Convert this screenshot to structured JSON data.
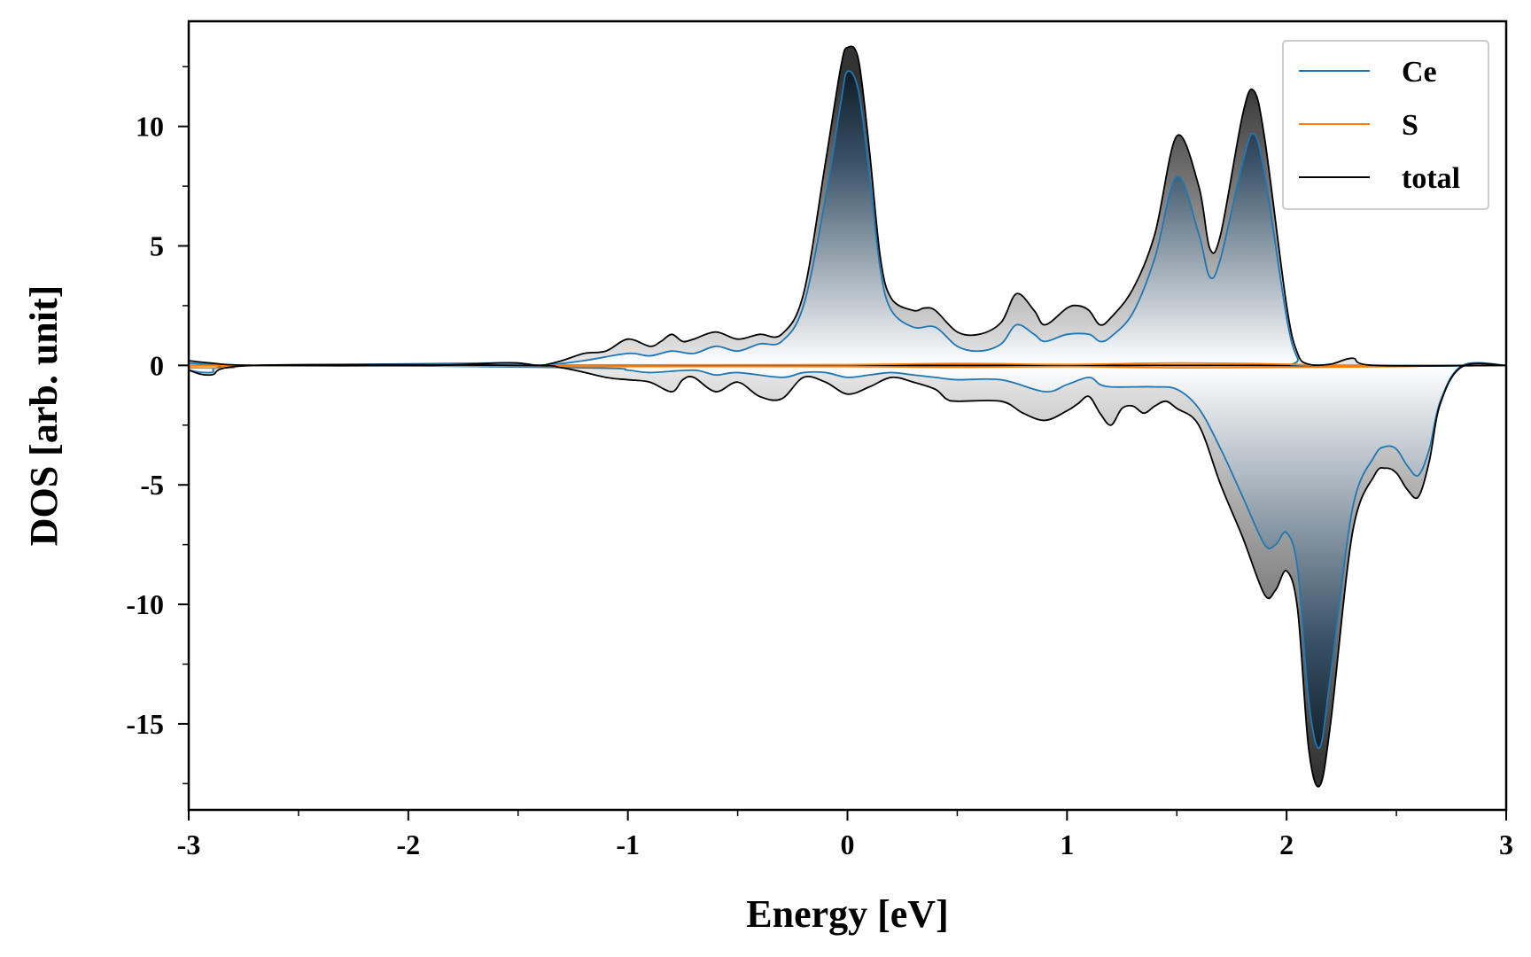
{
  "chart_data": {
    "type": "line",
    "xlabel": "Energy [eV]",
    "ylabel": "DOS [arb. unit]",
    "xlim": [
      -3,
      3
    ],
    "ylim": [
      -18.6,
      14.4
    ],
    "x_ticks": [
      -3,
      -2,
      -1,
      0,
      1,
      2,
      3
    ],
    "x_tick_labels": [
      "-3",
      "-2",
      "-1",
      "0",
      "1",
      "2",
      "3"
    ],
    "y_ticks": [
      10,
      5,
      0,
      -5,
      -10,
      -15
    ],
    "y_tick_labels": [
      "10",
      "5",
      "0",
      "-5",
      "-10",
      "-15"
    ],
    "grid": false,
    "legend_position": "top-right",
    "fill": "gradient under total curve, dark at extremes, white at zero",
    "series": [
      {
        "name": "Ce",
        "color": "#1f77b4",
        "up": [
          [
            -3.0,
            0.1
          ],
          [
            -2.7,
            0
          ],
          [
            -1.6,
            0.1
          ],
          [
            -1.4,
            0
          ],
          [
            -1.2,
            0.2
          ],
          [
            -1.0,
            0.5
          ],
          [
            -0.9,
            0.4
          ],
          [
            -0.8,
            0.6
          ],
          [
            -0.7,
            0.5
          ],
          [
            -0.6,
            0.8
          ],
          [
            -0.5,
            0.6
          ],
          [
            -0.4,
            0.9
          ],
          [
            -0.3,
            1.0
          ],
          [
            -0.2,
            2.5
          ],
          [
            -0.1,
            7.0
          ],
          [
            -0.03,
            11.0
          ],
          [
            0.0,
            12.3
          ],
          [
            0.05,
            11.5
          ],
          [
            0.1,
            8.0
          ],
          [
            0.15,
            4.0
          ],
          [
            0.2,
            2.3
          ],
          [
            0.3,
            1.6
          ],
          [
            0.4,
            1.6
          ],
          [
            0.5,
            0.8
          ],
          [
            0.6,
            0.6
          ],
          [
            0.7,
            0.9
          ],
          [
            0.77,
            1.7
          ],
          [
            0.85,
            1.3
          ],
          [
            0.9,
            1.0
          ],
          [
            1.0,
            1.3
          ],
          [
            1.1,
            1.3
          ],
          [
            1.15,
            1.0
          ],
          [
            1.2,
            1.2
          ],
          [
            1.3,
            2.2
          ],
          [
            1.4,
            4.5
          ],
          [
            1.5,
            7.9
          ],
          [
            1.6,
            5.5
          ],
          [
            1.65,
            3.7
          ],
          [
            1.7,
            4.5
          ],
          [
            1.8,
            8.5
          ],
          [
            1.85,
            9.7
          ],
          [
            1.9,
            8.0
          ],
          [
            2.0,
            2.0
          ],
          [
            2.05,
            0.3
          ],
          [
            2.1,
            0
          ],
          [
            3.0,
            0
          ]
        ],
        "down": [
          [
            -3.0,
            -0.2
          ],
          [
            -2.9,
            -0.3
          ],
          [
            -2.7,
            0
          ],
          [
            -1.2,
            -0.1
          ],
          [
            -1.0,
            -0.2
          ],
          [
            -0.9,
            -0.3
          ],
          [
            -0.7,
            -0.2
          ],
          [
            -0.6,
            -0.4
          ],
          [
            -0.5,
            -0.3
          ],
          [
            -0.3,
            -0.5
          ],
          [
            -0.2,
            -0.3
          ],
          [
            -0.1,
            -0.3
          ],
          [
            0.0,
            -0.5
          ],
          [
            0.1,
            -0.4
          ],
          [
            0.2,
            -0.3
          ],
          [
            0.3,
            -0.4
          ],
          [
            0.4,
            -0.5
          ],
          [
            0.5,
            -0.6
          ],
          [
            0.7,
            -0.6
          ],
          [
            0.9,
            -1.1
          ],
          [
            1.0,
            -0.8
          ],
          [
            1.1,
            -0.5
          ],
          [
            1.15,
            -0.8
          ],
          [
            1.2,
            -0.9
          ],
          [
            1.3,
            -0.9
          ],
          [
            1.4,
            -0.9
          ],
          [
            1.5,
            -1.0
          ],
          [
            1.6,
            -1.8
          ],
          [
            1.7,
            -3.5
          ],
          [
            1.8,
            -5.5
          ],
          [
            1.9,
            -7.5
          ],
          [
            1.95,
            -7.5
          ],
          [
            2.0,
            -7.0
          ],
          [
            2.05,
            -8.5
          ],
          [
            2.1,
            -14.0
          ],
          [
            2.15,
            -16.0
          ],
          [
            2.2,
            -13.0
          ],
          [
            2.3,
            -6.0
          ],
          [
            2.4,
            -3.8
          ],
          [
            2.45,
            -3.4
          ],
          [
            2.5,
            -3.5
          ],
          [
            2.55,
            -4.2
          ],
          [
            2.6,
            -4.6
          ],
          [
            2.65,
            -3.5
          ],
          [
            2.7,
            -1.5
          ],
          [
            2.8,
            0
          ],
          [
            3.0,
            0
          ]
        ]
      },
      {
        "name": "S",
        "color": "#ff7f0e",
        "up": [
          [
            -3.0,
            0
          ],
          [
            -1.0,
            0.02
          ],
          [
            0.0,
            0.03
          ],
          [
            0.5,
            0.08
          ],
          [
            1.0,
            0.04
          ],
          [
            1.5,
            0.1
          ],
          [
            2.0,
            0.05
          ],
          [
            2.2,
            0
          ],
          [
            3.0,
            0
          ]
        ],
        "down": [
          [
            -3.0,
            -0.1
          ],
          [
            -2.8,
            -0.1
          ],
          [
            -2.7,
            0
          ],
          [
            -1.0,
            -0.05
          ],
          [
            0.0,
            -0.05
          ],
          [
            0.5,
            -0.08
          ],
          [
            1.0,
            -0.05
          ],
          [
            1.5,
            -0.1
          ],
          [
            2.0,
            -0.08
          ],
          [
            2.5,
            -0.05
          ],
          [
            2.8,
            0
          ],
          [
            3.0,
            0
          ]
        ]
      },
      {
        "name": "total",
        "color": "#000000",
        "up": [
          [
            -3.0,
            0.2
          ],
          [
            -2.9,
            0.1
          ],
          [
            -2.7,
            0
          ],
          [
            -1.9,
            0
          ],
          [
            -1.6,
            0.1
          ],
          [
            -1.5,
            0.1
          ],
          [
            -1.4,
            0
          ],
          [
            -1.3,
            0.2
          ],
          [
            -1.2,
            0.5
          ],
          [
            -1.1,
            0.6
          ],
          [
            -1.0,
            1.1
          ],
          [
            -0.9,
            0.8
          ],
          [
            -0.85,
            1.0
          ],
          [
            -0.8,
            1.3
          ],
          [
            -0.75,
            1.0
          ],
          [
            -0.7,
            1.1
          ],
          [
            -0.6,
            1.4
          ],
          [
            -0.5,
            1.1
          ],
          [
            -0.4,
            1.3
          ],
          [
            -0.3,
            1.3
          ],
          [
            -0.2,
            3.0
          ],
          [
            -0.1,
            8.5
          ],
          [
            -0.03,
            12.5
          ],
          [
            0.0,
            13.3
          ],
          [
            0.05,
            12.8
          ],
          [
            0.1,
            9.0
          ],
          [
            0.15,
            4.5
          ],
          [
            0.2,
            2.8
          ],
          [
            0.3,
            2.3
          ],
          [
            0.35,
            2.4
          ],
          [
            0.4,
            2.3
          ],
          [
            0.5,
            1.4
          ],
          [
            0.6,
            1.3
          ],
          [
            0.7,
            1.8
          ],
          [
            0.77,
            3.0
          ],
          [
            0.85,
            2.3
          ],
          [
            0.9,
            1.7
          ],
          [
            1.0,
            2.4
          ],
          [
            1.05,
            2.5
          ],
          [
            1.1,
            2.3
          ],
          [
            1.15,
            1.7
          ],
          [
            1.2,
            2.0
          ],
          [
            1.3,
            3.2
          ],
          [
            1.4,
            5.5
          ],
          [
            1.5,
            9.6
          ],
          [
            1.6,
            7.5
          ],
          [
            1.65,
            4.9
          ],
          [
            1.7,
            5.5
          ],
          [
            1.8,
            10.5
          ],
          [
            1.85,
            11.5
          ],
          [
            1.9,
            9.5
          ],
          [
            2.0,
            2.5
          ],
          [
            2.05,
            0.5
          ],
          [
            2.1,
            0.05
          ],
          [
            2.2,
            0.05
          ],
          [
            2.3,
            0.3
          ],
          [
            2.4,
            0
          ],
          [
            3.0,
            0
          ]
        ],
        "down": [
          [
            -3.0,
            -0.2
          ],
          [
            -2.9,
            -0.4
          ],
          [
            -2.7,
            0
          ],
          [
            -1.5,
            0
          ],
          [
            -1.3,
            -0.1
          ],
          [
            -1.1,
            -0.5
          ],
          [
            -1.0,
            -0.6
          ],
          [
            -0.9,
            -0.7
          ],
          [
            -0.8,
            -1.1
          ],
          [
            -0.75,
            -0.6
          ],
          [
            -0.7,
            -0.5
          ],
          [
            -0.6,
            -1.1
          ],
          [
            -0.5,
            -0.7
          ],
          [
            -0.4,
            -1.3
          ],
          [
            -0.3,
            -1.4
          ],
          [
            -0.2,
            -0.5
          ],
          [
            -0.1,
            -0.7
          ],
          [
            0.0,
            -1.2
          ],
          [
            0.1,
            -0.9
          ],
          [
            0.2,
            -0.5
          ],
          [
            0.3,
            -0.7
          ],
          [
            0.4,
            -1.0
          ],
          [
            0.45,
            -1.4
          ],
          [
            0.5,
            -1.5
          ],
          [
            0.7,
            -1.5
          ],
          [
            0.8,
            -2.0
          ],
          [
            0.9,
            -2.3
          ],
          [
            1.0,
            -1.9
          ],
          [
            1.05,
            -1.6
          ],
          [
            1.1,
            -1.3
          ],
          [
            1.15,
            -2.0
          ],
          [
            1.2,
            -2.5
          ],
          [
            1.25,
            -1.8
          ],
          [
            1.3,
            -1.7
          ],
          [
            1.35,
            -2.0
          ],
          [
            1.4,
            -1.7
          ],
          [
            1.45,
            -1.5
          ],
          [
            1.5,
            -1.8
          ],
          [
            1.6,
            -2.5
          ],
          [
            1.7,
            -5.0
          ],
          [
            1.8,
            -7.2
          ],
          [
            1.9,
            -9.6
          ],
          [
            1.95,
            -9.4
          ],
          [
            2.0,
            -8.6
          ],
          [
            2.05,
            -10.2
          ],
          [
            2.1,
            -16.0
          ],
          [
            2.15,
            -17.6
          ],
          [
            2.2,
            -15.0
          ],
          [
            2.3,
            -7.0
          ],
          [
            2.4,
            -4.6
          ],
          [
            2.45,
            -4.3
          ],
          [
            2.5,
            -4.5
          ],
          [
            2.55,
            -5.2
          ],
          [
            2.6,
            -5.5
          ],
          [
            2.65,
            -4.0
          ],
          [
            2.7,
            -1.6
          ],
          [
            2.8,
            -0.05
          ],
          [
            3.0,
            0
          ]
        ]
      }
    ]
  }
}
